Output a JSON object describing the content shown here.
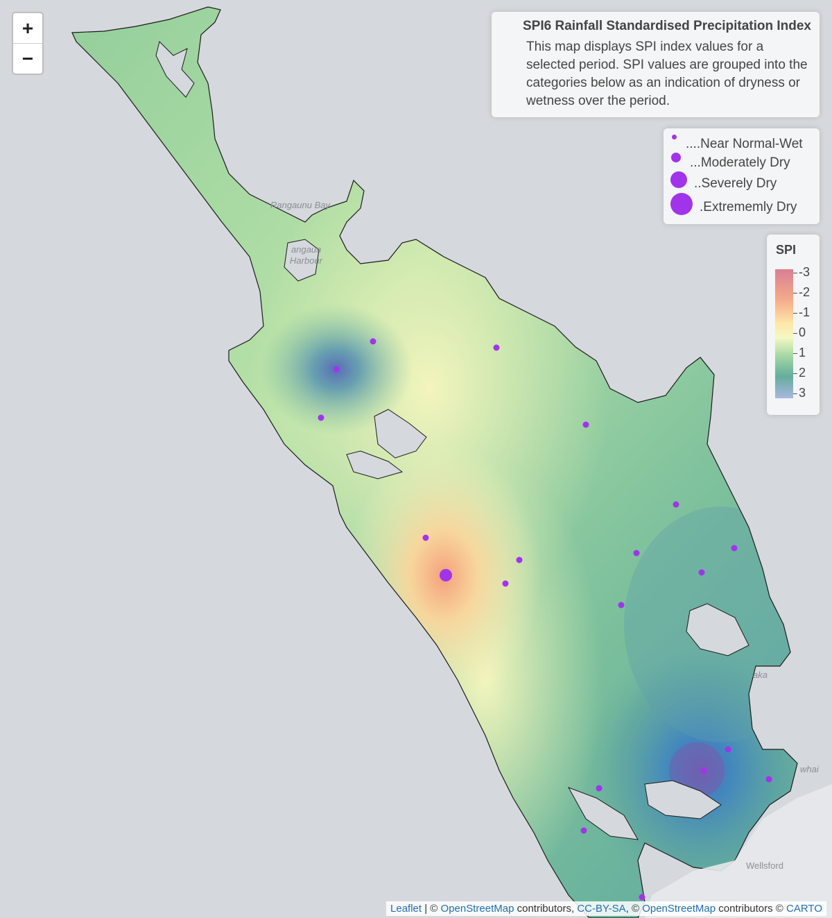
{
  "zoom": {
    "in_label": "+",
    "out_label": "−"
  },
  "info": {
    "title": "SPI6 Rainfall Standardised Precipitation Index",
    "description": "This map displays SPI index values for a selected period. SPI values are grouped into the categories below as an indication of dryness or wetness over the period."
  },
  "size_legend": {
    "items": [
      {
        "label": "....Near Normal-Wet"
      },
      {
        "label": "...Moderately Dry"
      },
      {
        "label": "..Severely Dry"
      },
      {
        "label": ".Extrememly Dry"
      }
    ]
  },
  "color_legend": {
    "title": "SPI",
    "labels": [
      "-3",
      "-2",
      "-1",
      "0",
      "1",
      "2",
      "3"
    ],
    "colors": [
      "#d97f93",
      "#f5a98a",
      "#fde7a8",
      "#f4f8c4",
      "#9fd6a3",
      "#65ad9c",
      "#a9b7e0"
    ]
  },
  "places": {
    "rangaunu_bay": "Rangaunu Bay",
    "harbour_1": "angaun",
    "harbour_2": "Harbour",
    "kaka": "aka",
    "whai": "whai",
    "wellsford": "Wellsford"
  },
  "attribution": {
    "leaflet": "Leaflet",
    "sep1": " | © ",
    "osm1": "OpenStreetMap",
    "t1": " contributors, ",
    "ccbysa": "CC-BY-SA",
    "t2": ", © ",
    "osm2": "OpenStreetMap",
    "t3": " contributors © ",
    "carto": "CARTO"
  },
  "marker_color": "#a134ea"
}
